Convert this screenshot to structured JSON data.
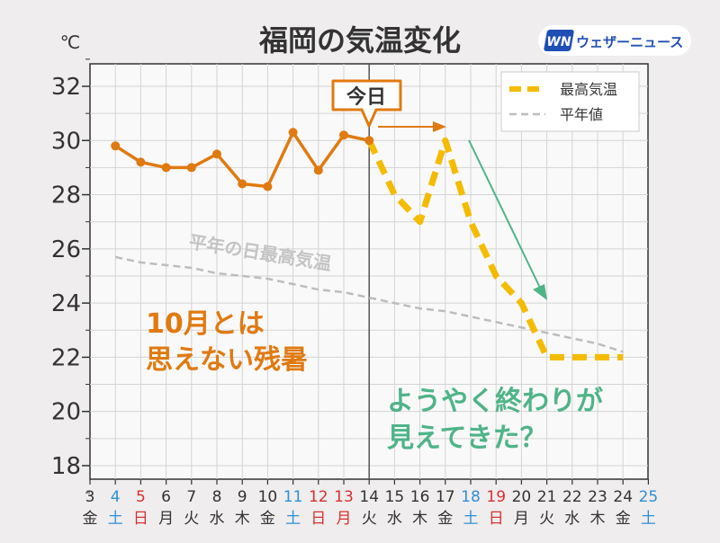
{
  "title": "福岡の気温変化",
  "unit": "℃",
  "brand": {
    "logo_mark": "WN",
    "name": "ウェザーニュース"
  },
  "today_label": "今日",
  "avg_curve_label": "平年の日最高気温",
  "annotations": {
    "left_line1": "10月とは",
    "left_line2": "思えない残暑",
    "right_line1": "ようやく終わりが",
    "right_line2": "見えてきた？"
  },
  "colors": {
    "observed": "#e07a10",
    "forecast": "#f5bb00",
    "normal": "#bdbdbd",
    "trend_arrow": "#4fb488",
    "weekday": "#333333",
    "saturday": "#2f8fd6",
    "sunday": "#d83030",
    "annotation_orange": "#e07a10",
    "annotation_green": "#4fb488"
  },
  "chart_data": {
    "type": "line",
    "title": "福岡の気温変化",
    "ylabel": "℃",
    "ylim": [
      17,
      33
    ],
    "yticks": [
      18,
      20,
      22,
      24,
      26,
      28,
      30,
      32
    ],
    "grid": true,
    "legend_position": "top-right",
    "x_days": [
      "3",
      "4",
      "5",
      "6",
      "7",
      "8",
      "9",
      "10",
      "11",
      "12",
      "13",
      "14",
      "15",
      "16",
      "17",
      "18",
      "19",
      "20",
      "21",
      "22",
      "23",
      "24",
      "25"
    ],
    "x_weekdays": [
      "金",
      "土",
      "日",
      "月",
      "火",
      "水",
      "木",
      "金",
      "土",
      "日",
      "月",
      "火",
      "水",
      "木",
      "金",
      "土",
      "日",
      "月",
      "火",
      "水",
      "木",
      "金",
      "土"
    ],
    "x_daytype": [
      "w",
      "sat",
      "sun",
      "w",
      "w",
      "w",
      "w",
      "w",
      "sat",
      "sun",
      "sun",
      "w",
      "w",
      "w",
      "w",
      "sat",
      "sun",
      "w",
      "w",
      "w",
      "w",
      "w",
      "sat"
    ],
    "today_x": "14",
    "series": [
      {
        "name": "",
        "style": "solid-markers",
        "x": [
          "4",
          "5",
          "6",
          "7",
          "8",
          "9",
          "10",
          "11",
          "12",
          "13",
          "14"
        ],
        "values": [
          29.8,
          29.2,
          29.0,
          29.0,
          29.5,
          28.4,
          28.3,
          30.3,
          28.9,
          30.2,
          30.0
        ]
      },
      {
        "name": "最高気温",
        "style": "dashed-thick",
        "x": [
          "14",
          "15",
          "16",
          "17",
          "18",
          "19",
          "20",
          "21",
          "22",
          "23",
          "24"
        ],
        "values": [
          30.0,
          28.0,
          27.0,
          30.0,
          27.0,
          25.0,
          24.0,
          22.0,
          22.0,
          22.0,
          22.0
        ]
      },
      {
        "name": "平年値",
        "style": "dashed-thin",
        "x": [
          "4",
          "5",
          "6",
          "7",
          "8",
          "9",
          "10",
          "11",
          "12",
          "13",
          "14",
          "15",
          "16",
          "17",
          "18",
          "19",
          "20",
          "21",
          "22",
          "23",
          "24"
        ],
        "values": [
          25.7,
          25.5,
          25.4,
          25.3,
          25.1,
          25.0,
          24.9,
          24.7,
          24.5,
          24.4,
          24.2,
          24.0,
          23.8,
          23.7,
          23.5,
          23.3,
          23.1,
          22.9,
          22.7,
          22.5,
          22.2
        ]
      }
    ]
  }
}
